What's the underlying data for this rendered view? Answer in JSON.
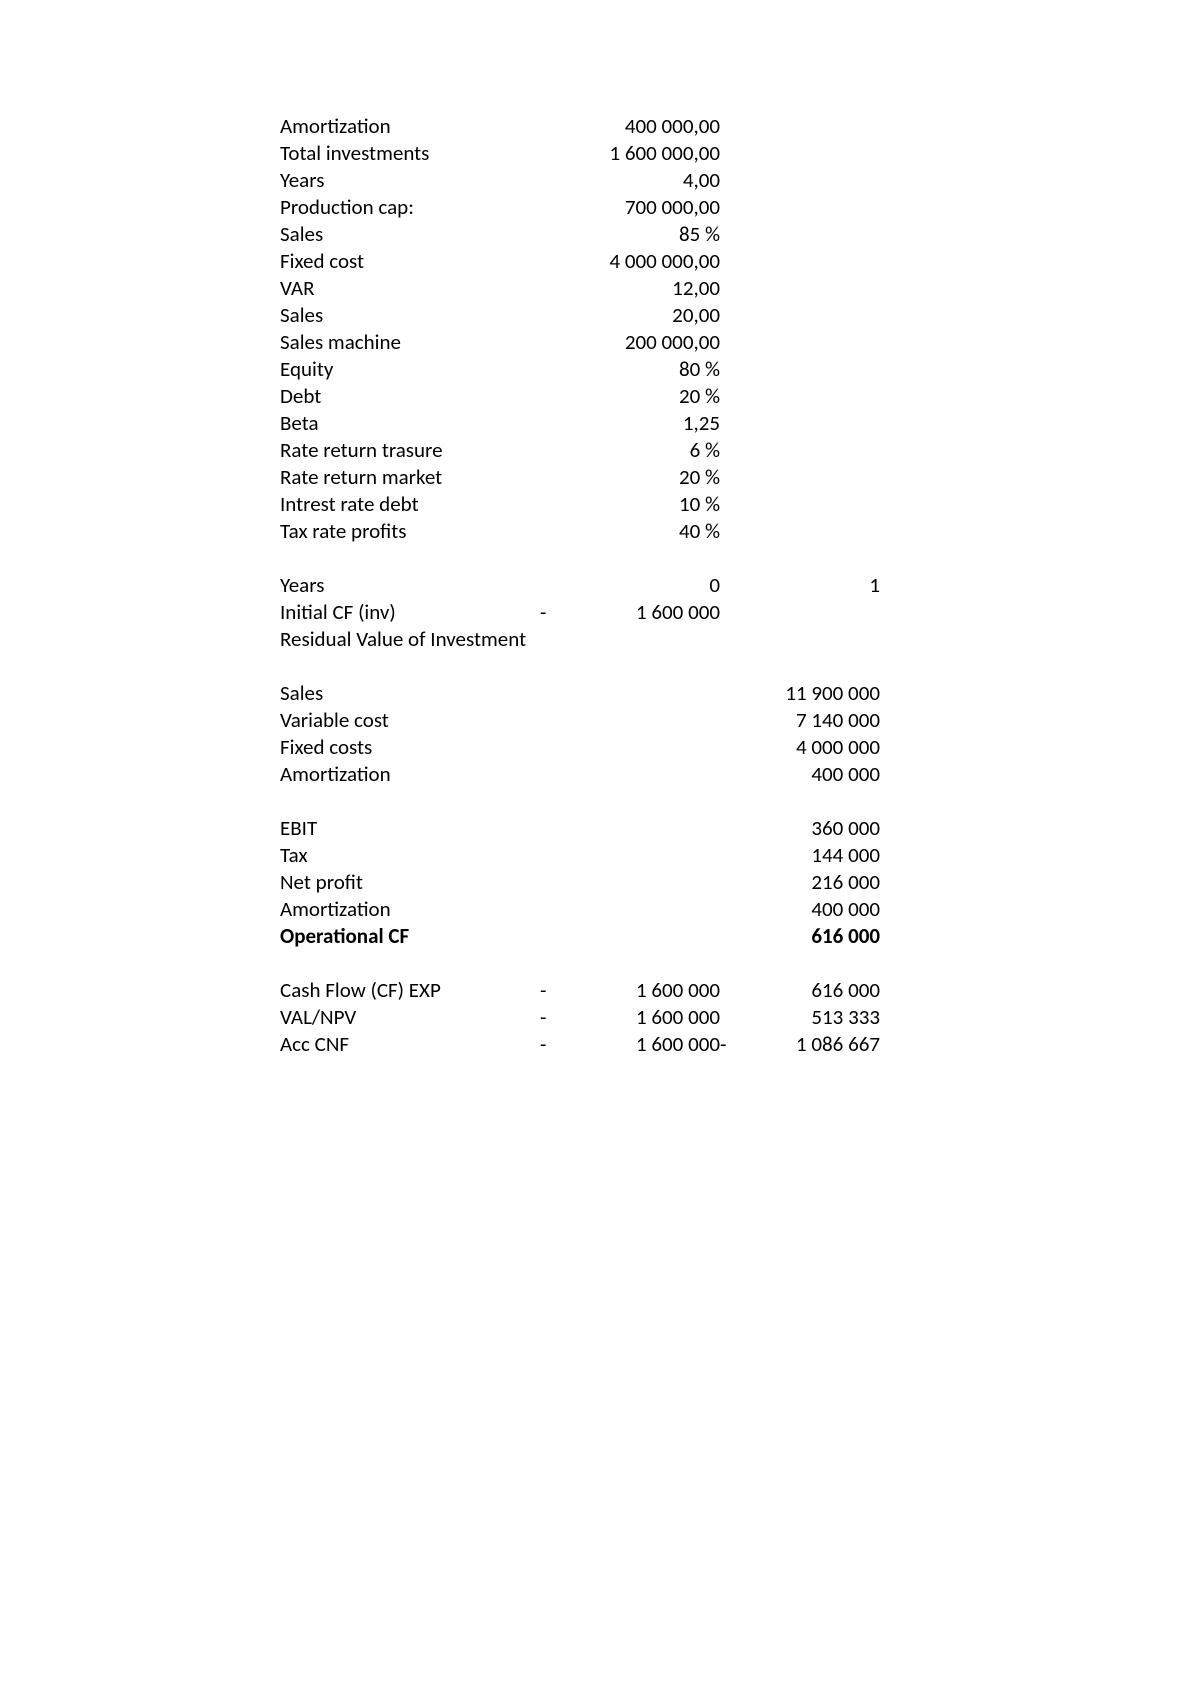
{
  "params": [
    {
      "label": "Amortization",
      "value": "400 000,00"
    },
    {
      "label": "Total investments",
      "value": "1 600 000,00"
    },
    {
      "label": "Years",
      "value": "4,00"
    },
    {
      "label": "Production cap:",
      "value": "700 000,00"
    },
    {
      "label": "Sales",
      "value": "85 %"
    },
    {
      "label": "Fixed cost",
      "value": "4 000 000,00"
    },
    {
      "label": "VAR",
      "value": "12,00"
    },
    {
      "label": "Sales",
      "value": "20,00"
    },
    {
      "label": "Sales machine",
      "value": "200 000,00"
    },
    {
      "label": "Equity",
      "value": "80 %"
    },
    {
      "label": "Debt",
      "value": "20 %"
    },
    {
      "label": "Beta",
      "value": "1,25"
    },
    {
      "label": "Rate return trasure",
      "value": "6 %"
    },
    {
      "label": "Rate return market",
      "value": "20 %"
    },
    {
      "label": "Intrest rate debt",
      "value": "10 %"
    },
    {
      "label": "Tax rate profits",
      "value": "40 %"
    }
  ],
  "years": {
    "label": "Years",
    "col0": "0",
    "col1": "1"
  },
  "initialCF": {
    "label": "Initial CF (inv)",
    "neg0": "-",
    "col0": "1 600 000"
  },
  "residual": {
    "label": "Residual Value of Investment"
  },
  "ops": [
    {
      "label": "Sales",
      "col1": "11 900 000"
    },
    {
      "label": "Variable cost",
      "col1": "7 140 000"
    },
    {
      "label": "Fixed costs",
      "col1": "4 000 000"
    },
    {
      "label": "Amortization",
      "col1": "400 000"
    }
  ],
  "profit": [
    {
      "label": "EBIT",
      "col1": "360 000"
    },
    {
      "label": "Tax",
      "col1": "144 000"
    },
    {
      "label": "Net profit",
      "col1": "216 000"
    },
    {
      "label": "Amortization",
      "col1": "400 000"
    }
  ],
  "opCF": {
    "label": "Operational CF",
    "col1": "616 000"
  },
  "cf": [
    {
      "label": "Cash Flow (CF) EXP",
      "neg0": "-",
      "col0": "1 600 000",
      "neg1": "",
      "col1": "616 000"
    },
    {
      "label": "VAL/NPV",
      "neg0": "-",
      "col0": "1 600 000",
      "neg1": "",
      "col1": "513 333"
    },
    {
      "label": "Acc CNF",
      "neg0": "-",
      "col0": "1 600 000",
      "neg1": "-",
      "col1": "1 086 667"
    }
  ]
}
